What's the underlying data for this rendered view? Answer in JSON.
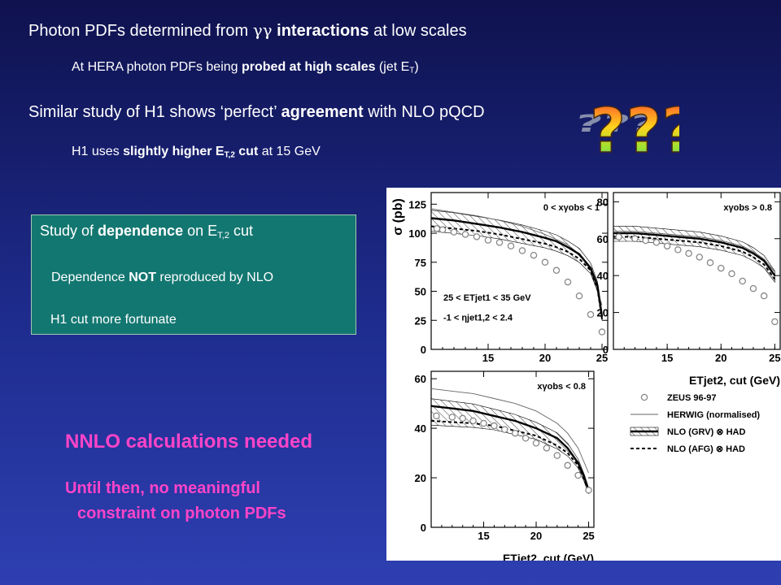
{
  "slide": {
    "line1": {
      "pre": "Photon PDFs determined from ",
      "gg": "γγ",
      "bold": " interactions",
      "post": " at low scales"
    },
    "line2": {
      "pre": "At HERA photon PDFs being ",
      "bold": "probed at high scales",
      "post": " (jet E",
      "sub": "T",
      "end": ")"
    },
    "line3": {
      "pre": "Similar study of H1 shows ‘perfect’ ",
      "bold": "agreement",
      "post": " with NLO pQCD"
    },
    "line4": {
      "pre": "H1 uses ",
      "bold": "slightly higher E",
      "sub": "T,2",
      "bold2": " cut",
      "post": " at 15 GeV"
    },
    "qmarks": "???",
    "box": {
      "title_pre": "Study of ",
      "title_bold": "dependence",
      "title_post": " on E",
      "title_sub": "T,2",
      "title_end": " cut",
      "line2_pre": "Dependence ",
      "line2_bold": "NOT",
      "line2_post": " reproduced by NLO",
      "line3": "H1 cut more fortunate"
    },
    "nnlo": "NNLO calculations needed",
    "until1": "Until then, no meaningful",
    "until2": "constraint on photon PDFs"
  },
  "chart_data": [
    {
      "type": "line",
      "panel": "top-left",
      "ylabel": "σ (pb)",
      "yticks": [
        "0",
        "25",
        "50",
        "75",
        "100",
        "125"
      ],
      "xticks": [
        "15",
        "20",
        "25"
      ],
      "ylim": [
        0,
        135
      ],
      "xlim": [
        10,
        25.5
      ],
      "annotation": "0 < xγobs < 1",
      "cut_label1": "25 < ETjet1 < 35 GeV",
      "cut_label2": "-1 < ηjet1,2 < 2.4",
      "series": [
        {
          "name": "ZEUS 96-97",
          "x": [
            10.5,
            11,
            12,
            13,
            14,
            15,
            16,
            17,
            18,
            19,
            20,
            21,
            22,
            23,
            24,
            25
          ],
          "y": [
            104,
            103,
            101,
            99,
            97,
            94,
            92,
            89,
            85,
            81,
            75,
            68,
            58,
            46,
            30,
            15
          ]
        },
        {
          "name": "HERWIG (normalised)",
          "x": [
            10,
            12,
            14,
            16,
            18,
            20,
            22,
            23,
            24,
            25
          ],
          "y": [
            121,
            118,
            115,
            111,
            106,
            99,
            90,
            82,
            68,
            38
          ]
        },
        {
          "name": "NLO (GRV) ⊗ HAD",
          "x": [
            10,
            12,
            14,
            16,
            18,
            20,
            21,
            22,
            23,
            24,
            24.6,
            25
          ],
          "y": [
            113,
            111,
            108,
            105,
            101,
            96,
            93,
            88,
            82,
            70,
            55,
            28
          ]
        },
        {
          "name": "NLO (AFG) ⊗ HAD",
          "x": [
            10,
            12,
            14,
            16,
            18,
            20,
            21,
            22,
            23,
            24,
            24.6,
            25
          ],
          "y": [
            106,
            104,
            102,
            99,
            95,
            91,
            88,
            84,
            78,
            68,
            52,
            26
          ]
        }
      ]
    },
    {
      "type": "line",
      "panel": "top-right",
      "yticks": [
        "0",
        "20",
        "40",
        "60",
        "80"
      ],
      "xticks": [
        "15",
        "20",
        "25"
      ],
      "ylim": [
        0,
        85
      ],
      "xlim": [
        10,
        25.5
      ],
      "xlabel": "ETjet2, cut (GeV)",
      "annotation": "xγobs > 0.8",
      "series": [
        {
          "name": "ZEUS 96-97",
          "x": [
            10.5,
            12,
            13,
            14,
            15,
            16,
            17,
            18,
            19,
            20,
            21,
            22,
            23,
            24,
            25
          ],
          "y": [
            61,
            60,
            59,
            58,
            56,
            54,
            52,
            50,
            47,
            44,
            41,
            37,
            33,
            29,
            15
          ]
        },
        {
          "name": "HERWIG (normalised)",
          "x": [
            10,
            12,
            14,
            16,
            18,
            20,
            22,
            23,
            24,
            25
          ],
          "y": [
            64,
            64,
            63,
            62,
            61,
            59,
            56,
            53,
            49,
            42
          ]
        },
        {
          "name": "NLO (GRV) ⊗ HAD",
          "x": [
            10,
            12,
            14,
            16,
            18,
            20,
            22,
            23,
            24,
            25
          ],
          "y": [
            63,
            63,
            62,
            61,
            60,
            58,
            55,
            52,
            48,
            40
          ]
        },
        {
          "name": "NLO (AFG) ⊗ HAD",
          "x": [
            10,
            12,
            14,
            16,
            18,
            20,
            22,
            23,
            24,
            25
          ],
          "y": [
            61,
            61,
            60,
            59,
            58,
            56,
            53,
            50,
            46,
            38
          ]
        }
      ]
    },
    {
      "type": "line",
      "panel": "bottom-left",
      "yticks": [
        "0",
        "20",
        "40",
        "60"
      ],
      "xticks": [
        "15",
        "20",
        "25"
      ],
      "ylim": [
        0,
        63
      ],
      "xlim": [
        10,
        25.5
      ],
      "xlabel": "ETjet2, cut (GeV)",
      "annotation": "xγobs < 0.8",
      "series": [
        {
          "name": "ZEUS 96-97",
          "x": [
            10.5,
            12,
            13,
            14,
            15,
            16,
            17,
            18,
            19,
            20,
            21,
            22,
            23,
            24,
            25
          ],
          "y": [
            45,
            44.5,
            44,
            43,
            42,
            41,
            39.5,
            38,
            36,
            34,
            32,
            29,
            25,
            21,
            15
          ]
        },
        {
          "name": "HERWIG (normalised)",
          "x": [
            10,
            12,
            14,
            16,
            18,
            20,
            22,
            23,
            24,
            25
          ],
          "y": [
            56,
            55,
            54,
            52,
            50,
            47,
            42,
            38,
            32,
            22
          ]
        },
        {
          "name": "NLO (GRV) ⊗ HAD",
          "x": [
            10,
            12,
            14,
            16,
            18,
            20,
            22,
            23,
            24,
            24.6,
            25
          ],
          "y": [
            49,
            48,
            47,
            45,
            43,
            40,
            36,
            32,
            26,
            20,
            15
          ]
        },
        {
          "name": "NLO (AFG) ⊗ HAD",
          "x": [
            10,
            12,
            14,
            16,
            18,
            20,
            22,
            23,
            24,
            24.6,
            25
          ],
          "y": [
            43,
            42.5,
            42,
            41,
            39,
            37,
            33,
            30,
            25,
            19,
            14
          ]
        }
      ]
    }
  ],
  "legend": {
    "items": [
      {
        "label": "ZEUS 96-97"
      },
      {
        "label": "HERWIG (normalised)"
      },
      {
        "label": "NLO (GRV) ⊗ HAD"
      },
      {
        "label": "NLO (AFG) ⊗ HAD"
      }
    ]
  }
}
